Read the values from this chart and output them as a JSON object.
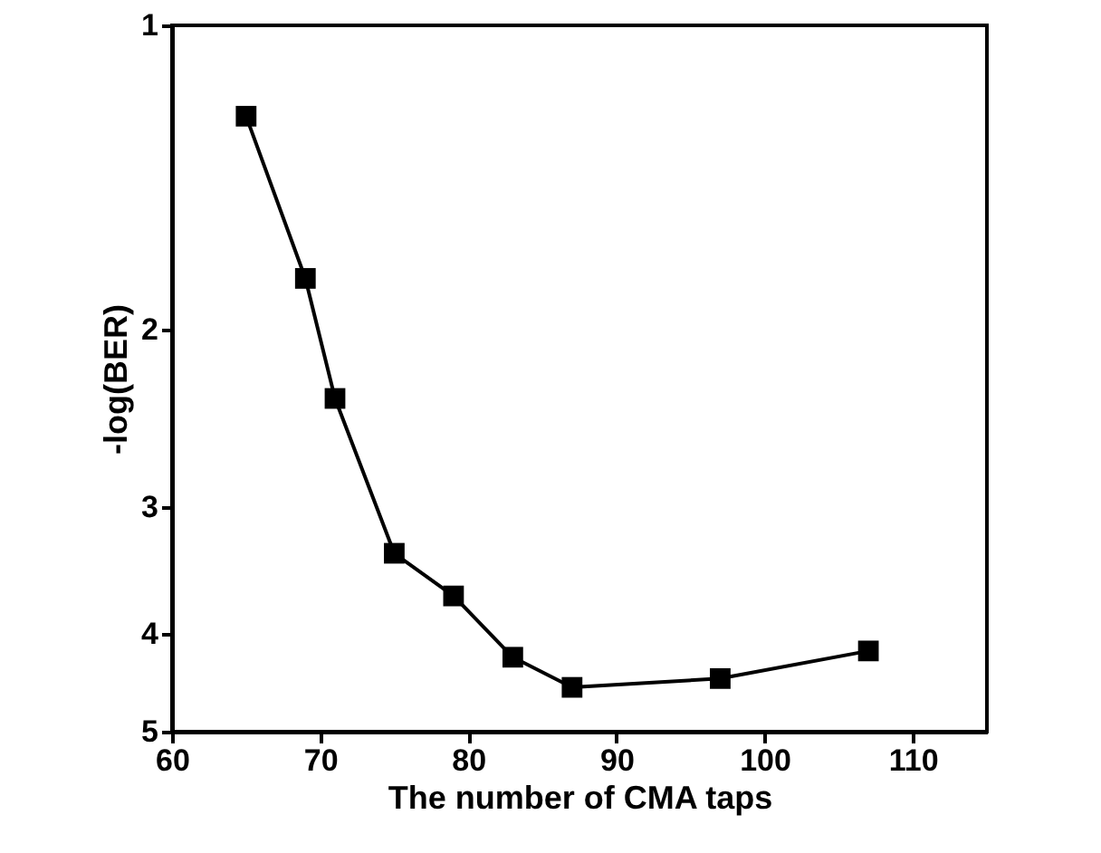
{
  "chart_data": {
    "type": "line",
    "xlabel": "The number of CMA taps",
    "ylabel": "-log(BER)",
    "x": [
      65,
      69,
      71,
      75,
      79,
      83,
      87,
      97,
      107
    ],
    "values": [
      1.23,
      1.78,
      2.34,
      3.33,
      3.67,
      4.22,
      4.52,
      4.43,
      4.16
    ],
    "color": "#000000",
    "marker": "square",
    "line_style": "solid",
    "xlim": [
      60,
      115
    ],
    "xticks": [
      60,
      70,
      80,
      90,
      100,
      110
    ],
    "ylim": [
      5,
      1
    ],
    "yticks": [
      1,
      2,
      3,
      4,
      5
    ],
    "log": "y",
    "grid": false
  }
}
